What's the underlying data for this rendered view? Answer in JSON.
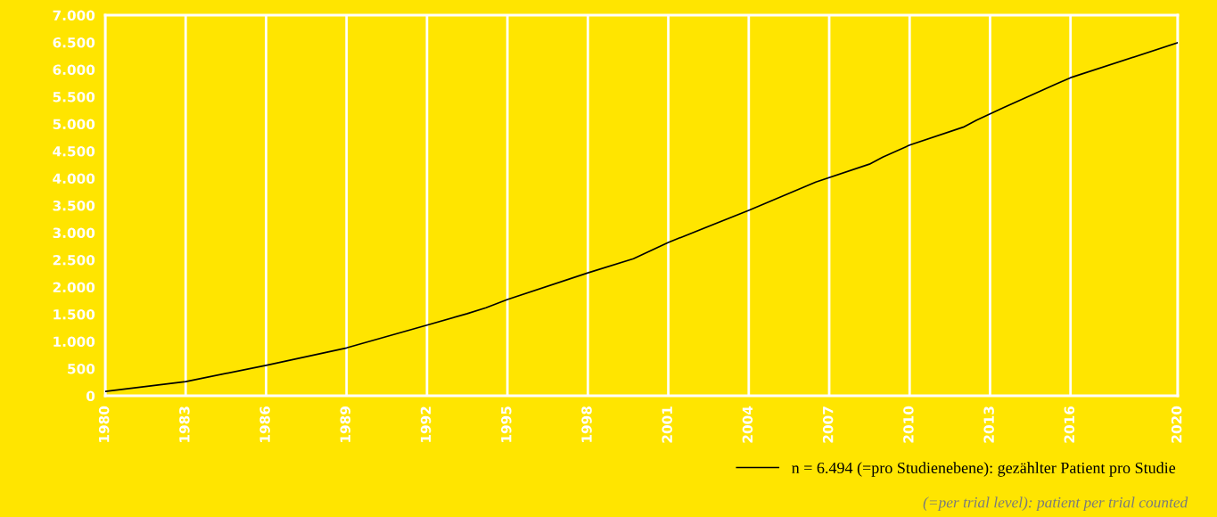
{
  "chart_data": {
    "type": "line",
    "x": [
      1980,
      1983,
      1986,
      1989,
      1992,
      1993.5,
      1994.2,
      1995,
      1998,
      1999.7,
      2001,
      2004,
      2006.5,
      2008.5,
      2009,
      2010,
      2012,
      2012.5,
      2013.5,
      2015.5,
      2016,
      2020
    ],
    "series": [
      {
        "name": "n = 6.494 (=pro Studienebene): gezählter Patient pro Studie",
        "color": "#000000",
        "values": [
          80,
          260,
          560,
          880,
          1300,
          1510,
          1620,
          1770,
          2260,
          2520,
          2820,
          3410,
          3930,
          4260,
          4390,
          4610,
          4940,
          5070,
          5300,
          5740,
          5850,
          6494
        ]
      }
    ],
    "xlim": [
      1980,
      2020
    ],
    "xticks": [
      1980,
      1983,
      1986,
      1989,
      1992,
      1995,
      1998,
      2001,
      2004,
      2007,
      2010,
      2013,
      2016,
      2020
    ],
    "ylim": [
      0,
      7000
    ],
    "yticks": [
      {
        "value": 0,
        "label": "0"
      },
      {
        "value": 500,
        "label": "500"
      },
      {
        "value": 1000,
        "label": "1.000"
      },
      {
        "value": 1500,
        "label": "1.500"
      },
      {
        "value": 2000,
        "label": "2.000"
      },
      {
        "value": 2500,
        "label": "2.500"
      },
      {
        "value": 3000,
        "label": "3.000"
      },
      {
        "value": 3500,
        "label": "3.500"
      },
      {
        "value": 4000,
        "label": "4.000"
      },
      {
        "value": 4500,
        "label": "4.500"
      },
      {
        "value": 5000,
        "label": "5.000"
      },
      {
        "value": 5500,
        "label": "5.500"
      },
      {
        "value": 6000,
        "label": "6.000"
      },
      {
        "value": 6500,
        "label": "6.500"
      },
      {
        "value": 7000,
        "label": "7.000"
      }
    ],
    "grid": "x",
    "legend": "bottom right",
    "marker": "none",
    "line_style": "solid",
    "annotations": [
      "(=per trial level): patient per trial counted"
    ]
  }
}
